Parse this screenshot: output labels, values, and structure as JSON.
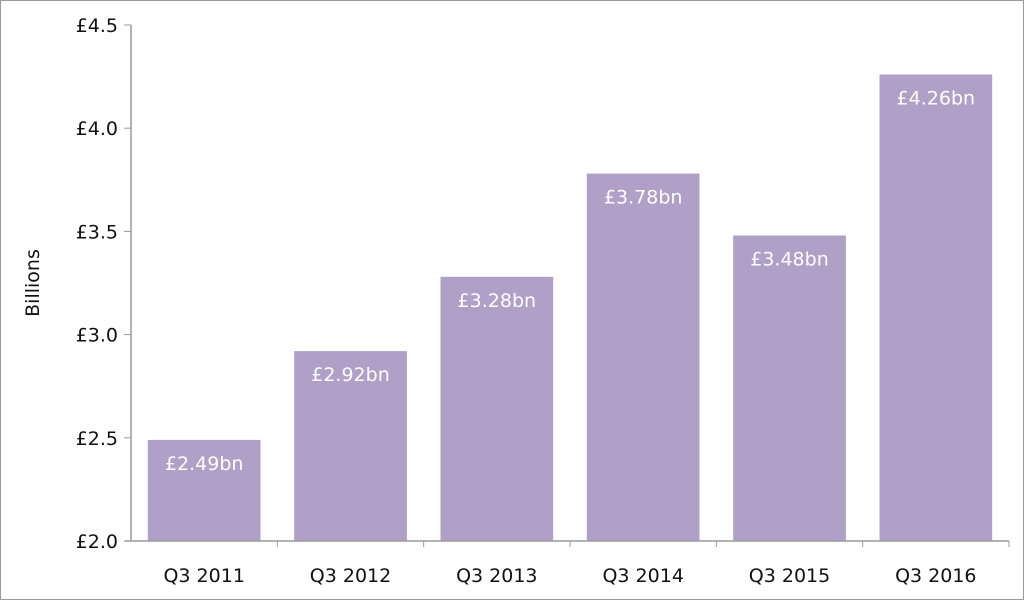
{
  "chart_data": {
    "type": "bar",
    "title": "",
    "xlabel": "",
    "ylabel": "Billions",
    "categories": [
      "Q3 2011",
      "Q3 2012",
      "Q3 2013",
      "Q3 2014",
      "Q3 2015",
      "Q3 2016"
    ],
    "values": [
      2.49,
      2.92,
      3.28,
      3.78,
      3.48,
      4.26
    ],
    "data_labels": [
      "£2.49bn",
      "£2.92bn",
      "£3.28bn",
      "£3.78bn",
      "£3.48bn",
      "£4.26bn"
    ],
    "ylim": [
      2.0,
      4.5
    ],
    "yticks": [
      2.0,
      2.5,
      3.0,
      3.5,
      4.0,
      4.5
    ],
    "ytick_labels": [
      "£2.0",
      "£2.5",
      "£3.0",
      "£3.5",
      "£4.0",
      "£4.5"
    ],
    "grid": false,
    "legend": "none",
    "bar_color": "#b0a0c8",
    "axis_color": "#9a9a9a",
    "label_color": "#ffffff",
    "text_color": "#111111"
  }
}
